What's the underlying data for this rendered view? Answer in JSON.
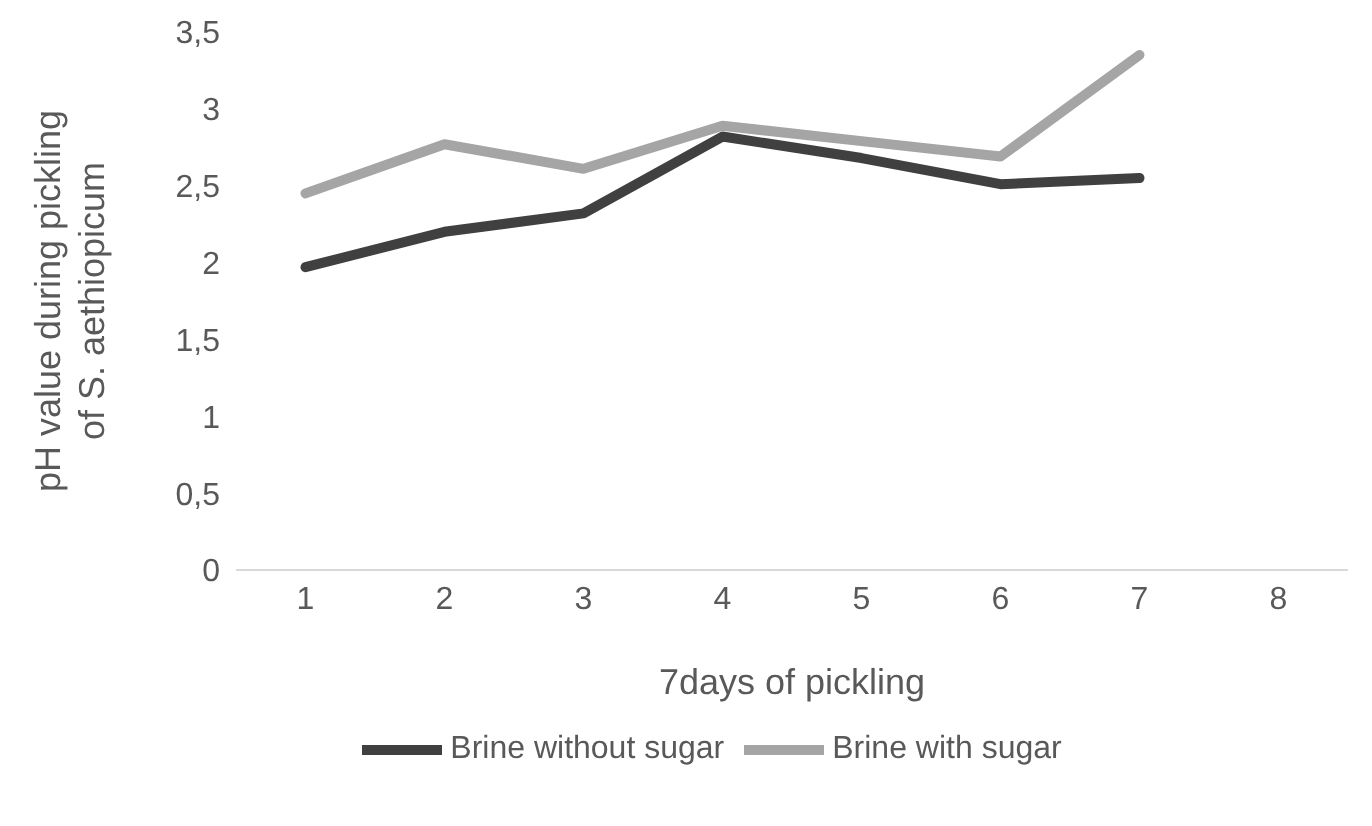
{
  "chart_data": {
    "type": "line",
    "xlabel": "7days of pickling",
    "ylabel": "pH value during pickling of S. aethiopicum",
    "categories": [
      "1",
      "2",
      "3",
      "4",
      "5",
      "6",
      "7",
      "8"
    ],
    "series": [
      {
        "name": "Brine without sugar",
        "color": "#404040",
        "values": [
          1.97,
          2.2,
          2.32,
          2.82,
          2.68,
          2.51,
          2.55,
          null
        ]
      },
      {
        "name": "Brine with sugar",
        "color": "#a5a5a5",
        "values": [
          2.45,
          2.77,
          2.61,
          2.89,
          2.79,
          2.69,
          3.35,
          null
        ]
      }
    ],
    "ylim": [
      0,
      3.5
    ],
    "yticks": [
      {
        "value": 0,
        "label": "0"
      },
      {
        "value": 0.5,
        "label": "0,5"
      },
      {
        "value": 1,
        "label": "1"
      },
      {
        "value": 1.5,
        "label": "1,5"
      },
      {
        "value": 2,
        "label": "2"
      },
      {
        "value": 2.5,
        "label": "2,5"
      },
      {
        "value": 3,
        "label": "3"
      },
      {
        "value": 3.5,
        "label": "3,5"
      }
    ],
    "grid": false,
    "legend": "bottom",
    "marker": "none",
    "line_style": "solid"
  }
}
